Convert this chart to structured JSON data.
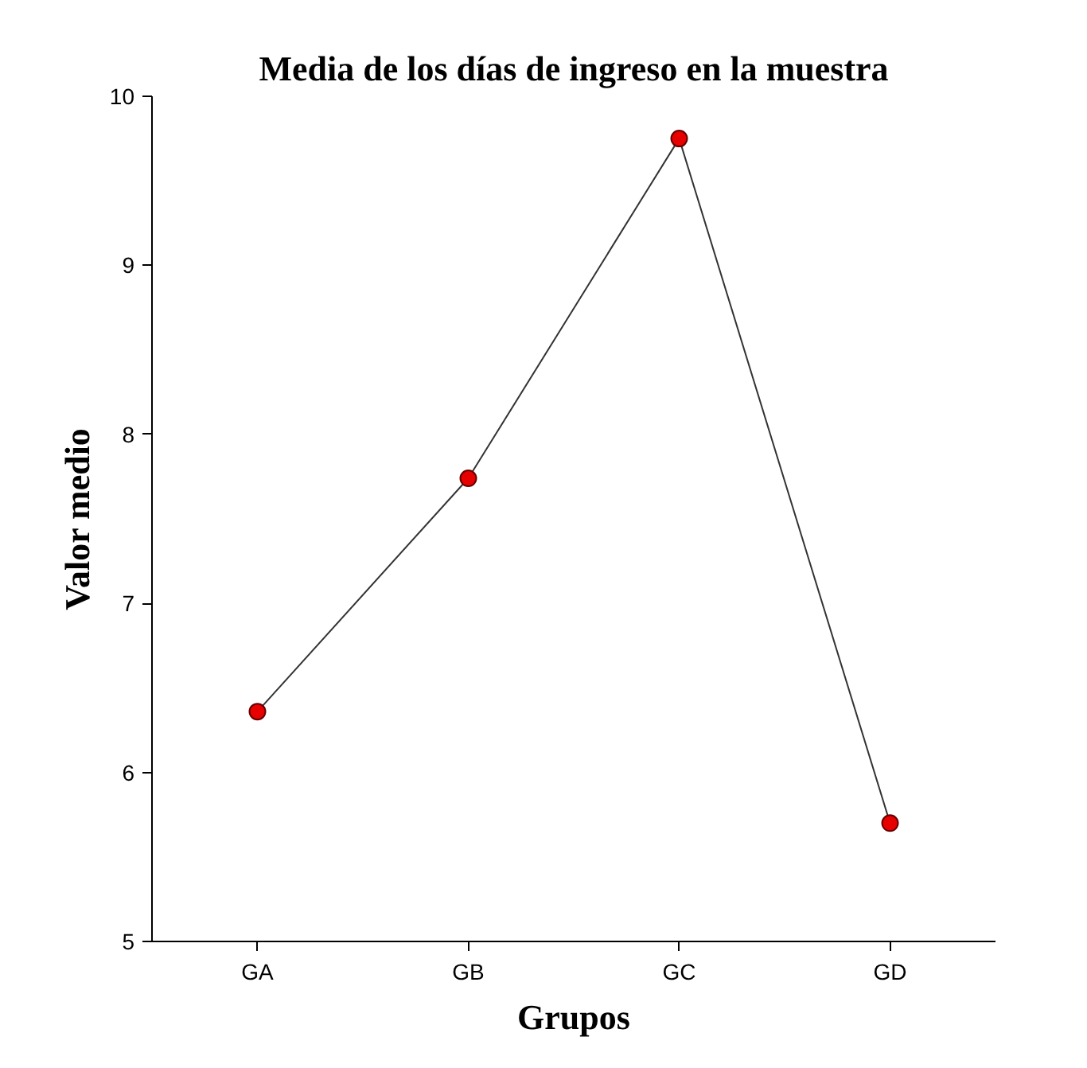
{
  "chart_data": {
    "type": "line",
    "title": "Media de los días de ingreso en la muestra",
    "xlabel": "Grupos",
    "ylabel": "Valor medio",
    "categories": [
      "GA",
      "GB",
      "GC",
      "GD"
    ],
    "series": [
      {
        "color": "#333333",
        "colors": [
          "#e60000",
          "#e60000",
          "#e60000",
          "#e60000"
        ],
        "values": [
          6.36,
          7.74,
          9.75,
          5.7
        ]
      }
    ],
    "marker": "circle",
    "ylim": [
      5,
      10
    ],
    "yticks": [
      5,
      6,
      7,
      8,
      9,
      10
    ]
  }
}
